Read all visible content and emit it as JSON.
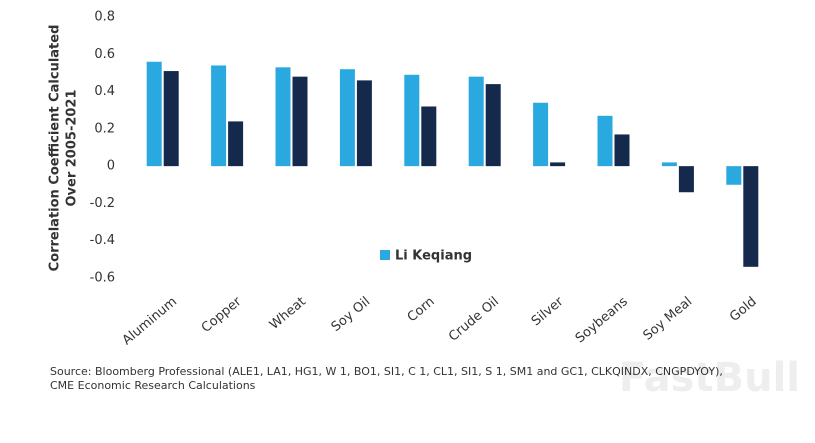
{
  "chart_data": {
    "type": "bar",
    "ylabel": [
      "Correlation Coefficient Calculated",
      "Over 2005-2021"
    ],
    "categories": [
      "Aluminum",
      "Copper",
      "Wheat",
      "Soy Oil",
      "Corn",
      "Crude Oil",
      "Silver",
      "Soybeans",
      "Soy Meal",
      "Gold"
    ],
    "series": [
      {
        "name": "Li Keqiang",
        "color": "#2aa9e0",
        "values": [
          0.56,
          0.54,
          0.53,
          0.52,
          0.49,
          0.48,
          0.34,
          0.27,
          0.02,
          -0.1
        ]
      },
      {
        "color": "#14294b",
        "values": [
          0.51,
          0.24,
          0.48,
          0.46,
          0.32,
          0.44,
          0.02,
          0.17,
          -0.14,
          -0.54
        ]
      }
    ],
    "ylim": [
      -0.6,
      0.8
    ],
    "yticks": [
      0.8,
      0.6,
      0.4,
      0.2,
      0,
      -0.2,
      -0.4,
      -0.6
    ],
    "grid": false,
    "source": [
      "Source: Bloomberg Professional (ALE1, LA1, HG1, W 1, BO1, SI1, C 1, CL1, SI1, S 1, SM1 and GC1, CLKQINDX, CNGPDYOY),",
      "CME Economic Research Calculations"
    ],
    "watermark": "FastBull"
  }
}
